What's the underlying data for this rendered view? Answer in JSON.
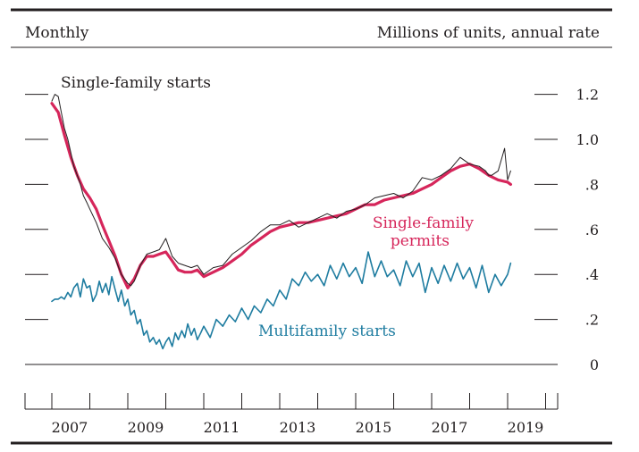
{
  "chart_data": {
    "type": "line",
    "frequency_label": "Monthly",
    "units_label": "Millions of units, annual rate",
    "xlim": [
      2006.7,
      2019.8
    ],
    "ylim": [
      0,
      1.25
    ],
    "y_ticks": [
      {
        "value": 0,
        "label": "0"
      },
      {
        "value": 0.2,
        "label": ".2"
      },
      {
        "value": 0.4,
        "label": ".4"
      },
      {
        "value": 0.6,
        "label": ".6"
      },
      {
        "value": 0.8,
        "label": ".8"
      },
      {
        "value": 1.0,
        "label": "1.0"
      },
      {
        "value": 1.2,
        "label": "1.2"
      }
    ],
    "x_tick_labels": [
      "2007",
      "2009",
      "2011",
      "2013",
      "2015",
      "2017",
      "2019"
    ],
    "grid": false,
    "series": [
      {
        "name": "Single-family starts",
        "color": "#231f20",
        "x": [
          2007.0,
          2007.08,
          2007.17,
          2007.25,
          2007.33,
          2007.42,
          2007.5,
          2007.58,
          2007.67,
          2007.75,
          2007.83,
          2007.92,
          2008.0,
          2008.17,
          2008.33,
          2008.5,
          2008.67,
          2008.83,
          2009.0,
          2009.08,
          2009.17,
          2009.33,
          2009.5,
          2009.67,
          2009.83,
          2010.0,
          2010.17,
          2010.33,
          2010.5,
          2010.67,
          2010.83,
          2011.0,
          2011.25,
          2011.5,
          2011.75,
          2012.0,
          2012.25,
          2012.5,
          2012.75,
          2013.0,
          2013.25,
          2013.5,
          2013.75,
          2014.0,
          2014.25,
          2014.5,
          2014.75,
          2015.0,
          2015.25,
          2015.5,
          2015.75,
          2016.0,
          2016.25,
          2016.5,
          2016.75,
          2017.0,
          2017.25,
          2017.5,
          2017.75,
          2018.0,
          2018.25,
          2018.42,
          2018.5,
          2018.58,
          2018.75,
          2018.92,
          2019.0,
          2019.08
        ],
        "values": [
          1.17,
          1.2,
          1.19,
          1.12,
          1.05,
          1.0,
          0.94,
          0.88,
          0.84,
          0.8,
          0.75,
          0.72,
          0.69,
          0.63,
          0.56,
          0.52,
          0.47,
          0.4,
          0.36,
          0.35,
          0.37,
          0.44,
          0.49,
          0.5,
          0.51,
          0.56,
          0.48,
          0.45,
          0.44,
          0.43,
          0.44,
          0.4,
          0.43,
          0.44,
          0.49,
          0.52,
          0.55,
          0.59,
          0.62,
          0.62,
          0.64,
          0.61,
          0.63,
          0.65,
          0.67,
          0.65,
          0.68,
          0.69,
          0.71,
          0.74,
          0.75,
          0.76,
          0.74,
          0.77,
          0.83,
          0.82,
          0.84,
          0.87,
          0.92,
          0.89,
          0.88,
          0.86,
          0.84,
          0.84,
          0.86,
          0.96,
          0.82,
          0.86
        ]
      },
      {
        "name": "Single-family permits",
        "color": "#d6265b",
        "x": [
          2007.0,
          2007.17,
          2007.33,
          2007.5,
          2007.67,
          2007.83,
          2008.0,
          2008.17,
          2008.33,
          2008.5,
          2008.67,
          2008.83,
          2009.0,
          2009.17,
          2009.33,
          2009.5,
          2009.67,
          2009.83,
          2010.0,
          2010.17,
          2010.33,
          2010.5,
          2010.67,
          2010.83,
          2011.0,
          2011.25,
          2011.5,
          2011.75,
          2012.0,
          2012.25,
          2012.5,
          2012.75,
          2013.0,
          2013.25,
          2013.5,
          2013.75,
          2014.0,
          2014.25,
          2014.5,
          2014.75,
          2015.0,
          2015.25,
          2015.5,
          2015.75,
          2016.0,
          2016.25,
          2016.5,
          2016.75,
          2017.0,
          2017.25,
          2017.5,
          2017.75,
          2018.0,
          2018.25,
          2018.5,
          2018.75,
          2019.0,
          2019.08
        ],
        "values": [
          1.16,
          1.12,
          1.02,
          0.92,
          0.84,
          0.78,
          0.74,
          0.69,
          0.62,
          0.55,
          0.48,
          0.4,
          0.34,
          0.38,
          0.44,
          0.48,
          0.48,
          0.49,
          0.5,
          0.46,
          0.42,
          0.41,
          0.41,
          0.42,
          0.39,
          0.41,
          0.43,
          0.46,
          0.49,
          0.53,
          0.56,
          0.59,
          0.61,
          0.62,
          0.63,
          0.63,
          0.64,
          0.65,
          0.66,
          0.67,
          0.69,
          0.71,
          0.71,
          0.73,
          0.74,
          0.75,
          0.76,
          0.78,
          0.8,
          0.83,
          0.86,
          0.88,
          0.89,
          0.87,
          0.84,
          0.82,
          0.81,
          0.8
        ]
      },
      {
        "name": "Multifamily starts",
        "color": "#1e7ca0",
        "x": [
          2007.0,
          2007.08,
          2007.17,
          2007.25,
          2007.33,
          2007.42,
          2007.5,
          2007.58,
          2007.67,
          2007.75,
          2007.83,
          2007.92,
          2008.0,
          2008.08,
          2008.17,
          2008.25,
          2008.33,
          2008.42,
          2008.5,
          2008.58,
          2008.67,
          2008.75,
          2008.83,
          2008.92,
          2009.0,
          2009.08,
          2009.17,
          2009.25,
          2009.33,
          2009.42,
          2009.5,
          2009.58,
          2009.67,
          2009.75,
          2009.83,
          2009.92,
          2010.0,
          2010.08,
          2010.17,
          2010.25,
          2010.33,
          2010.42,
          2010.5,
          2010.58,
          2010.67,
          2010.75,
          2010.83,
          2010.92,
          2011.0,
          2011.17,
          2011.33,
          2011.5,
          2011.67,
          2011.83,
          2012.0,
          2012.17,
          2012.33,
          2012.5,
          2012.67,
          2012.83,
          2013.0,
          2013.17,
          2013.33,
          2013.5,
          2013.67,
          2013.83,
          2014.0,
          2014.17,
          2014.33,
          2014.5,
          2014.67,
          2014.83,
          2015.0,
          2015.17,
          2015.33,
          2015.5,
          2015.67,
          2015.83,
          2016.0,
          2016.17,
          2016.33,
          2016.5,
          2016.67,
          2016.83,
          2017.0,
          2017.17,
          2017.33,
          2017.5,
          2017.67,
          2017.83,
          2018.0,
          2018.17,
          2018.33,
          2018.5,
          2018.67,
          2018.83,
          2019.0,
          2019.08
        ],
        "values": [
          0.28,
          0.29,
          0.29,
          0.3,
          0.29,
          0.32,
          0.3,
          0.34,
          0.36,
          0.3,
          0.38,
          0.34,
          0.35,
          0.28,
          0.31,
          0.37,
          0.32,
          0.36,
          0.31,
          0.39,
          0.33,
          0.28,
          0.33,
          0.26,
          0.29,
          0.22,
          0.24,
          0.18,
          0.2,
          0.13,
          0.15,
          0.1,
          0.12,
          0.09,
          0.11,
          0.07,
          0.1,
          0.12,
          0.08,
          0.14,
          0.11,
          0.15,
          0.12,
          0.18,
          0.13,
          0.16,
          0.11,
          0.14,
          0.17,
          0.12,
          0.2,
          0.17,
          0.22,
          0.19,
          0.25,
          0.2,
          0.26,
          0.23,
          0.29,
          0.26,
          0.33,
          0.29,
          0.38,
          0.35,
          0.41,
          0.37,
          0.4,
          0.35,
          0.44,
          0.38,
          0.45,
          0.39,
          0.43,
          0.36,
          0.5,
          0.39,
          0.46,
          0.39,
          0.42,
          0.35,
          0.46,
          0.39,
          0.45,
          0.32,
          0.43,
          0.36,
          0.44,
          0.37,
          0.45,
          0.38,
          0.43,
          0.34,
          0.44,
          0.32,
          0.4,
          0.35,
          0.4,
          0.45
        ]
      }
    ]
  }
}
